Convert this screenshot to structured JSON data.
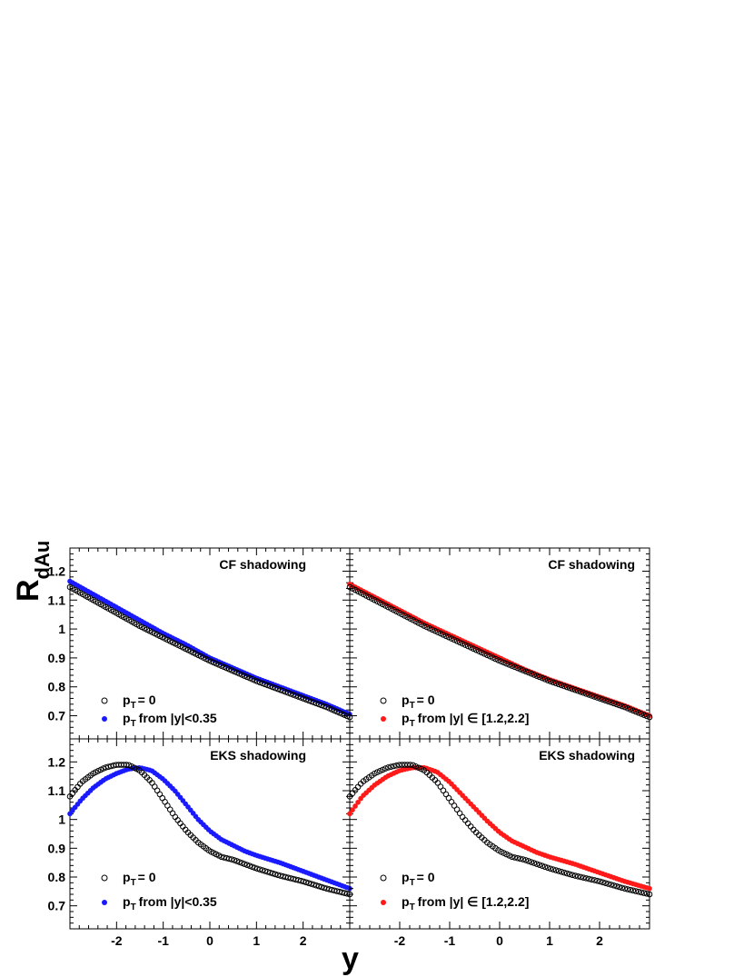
{
  "chart_data": [
    {
      "type": "scatter",
      "panel": "top-left",
      "title": "CF shadowing",
      "xlabel": "y",
      "ylabel": "R_dAu",
      "xlim": [
        -3,
        3
      ],
      "ylim": [
        0.62,
        1.28
      ],
      "xticks": [
        "-2",
        "-1",
        "0",
        "1",
        "2"
      ],
      "yticks": [
        "0.7",
        "0.8",
        "0.9",
        "1",
        "1.1",
        "1.2"
      ],
      "grid": false,
      "legend_position": "bottom-left",
      "series": [
        {
          "name": "p_T = 0",
          "marker": "open-circle",
          "color": "#000000",
          "x": [
            -3,
            -2.5,
            -2,
            -1.5,
            -1,
            -0.5,
            0,
            0.5,
            1,
            1.5,
            2,
            2.5,
            3
          ],
          "y": [
            1.145,
            1.1,
            1.055,
            1.01,
            0.97,
            0.93,
            0.89,
            0.855,
            0.82,
            0.79,
            0.76,
            0.73,
            0.695
          ]
        },
        {
          "name": "p_T from |y|<0.35",
          "marker": "filled-circle",
          "color": "#1a1aff",
          "x": [
            -3,
            -2.5,
            -2,
            -1.5,
            -1,
            -0.5,
            0,
            0.5,
            1,
            1.5,
            2,
            2.5,
            3
          ],
          "y": [
            1.165,
            1.12,
            1.075,
            1.03,
            0.985,
            0.945,
            0.9,
            0.865,
            0.83,
            0.8,
            0.77,
            0.74,
            0.705
          ]
        }
      ]
    },
    {
      "type": "scatter",
      "panel": "top-right",
      "title": "CF shadowing",
      "xlabel": "y",
      "xlim": [
        -3,
        3
      ],
      "ylim": [
        0.62,
        1.28
      ],
      "xticks": [
        "-2",
        "-1",
        "0",
        "1",
        "2"
      ],
      "grid": false,
      "legend_position": "bottom-left",
      "series": [
        {
          "name": "p_T = 0",
          "marker": "open-circle",
          "color": "#000000",
          "x": [
            -3,
            -2.5,
            -2,
            -1.5,
            -1,
            -0.5,
            0,
            0.5,
            1,
            1.5,
            2,
            2.5,
            3
          ],
          "y": [
            1.145,
            1.1,
            1.055,
            1.01,
            0.97,
            0.93,
            0.89,
            0.855,
            0.82,
            0.79,
            0.76,
            0.73,
            0.695
          ]
        },
        {
          "name": "p_T from |y| ∈ [1.2,2.2]",
          "marker": "filled-circle",
          "color": "#ff1a1a",
          "x": [
            -3,
            -2.5,
            -2,
            -1.5,
            -1,
            -0.5,
            0,
            0.5,
            1,
            1.5,
            2,
            2.5,
            3
          ],
          "y": [
            1.155,
            1.11,
            1.065,
            1.02,
            0.98,
            0.94,
            0.9,
            0.86,
            0.825,
            0.795,
            0.765,
            0.735,
            0.7
          ]
        }
      ]
    },
    {
      "type": "scatter",
      "panel": "bottom-left",
      "title": "EKS shadowing",
      "xlabel": "y",
      "ylabel": "R_dAu",
      "xlim": [
        -3,
        3
      ],
      "ylim": [
        0.62,
        1.28
      ],
      "xticks": [
        "-2",
        "-1",
        "0",
        "1",
        "2"
      ],
      "yticks": [
        "0.7",
        "0.8",
        "0.9",
        "1",
        "1.1",
        "1.2"
      ],
      "grid": false,
      "legend_position": "bottom-left",
      "series": [
        {
          "name": "p_T = 0",
          "marker": "open-circle",
          "color": "#000000",
          "x": [
            -3,
            -2.75,
            -2.5,
            -2.25,
            -2,
            -1.75,
            -1.5,
            -1.25,
            -1,
            -0.75,
            -0.5,
            -0.25,
            0,
            0.25,
            0.5,
            0.75,
            1,
            1.5,
            2,
            2.5,
            3
          ],
          "y": [
            1.08,
            1.13,
            1.16,
            1.18,
            1.19,
            1.19,
            1.17,
            1.13,
            1.07,
            1.01,
            0.96,
            0.92,
            0.89,
            0.87,
            0.86,
            0.845,
            0.83,
            0.805,
            0.785,
            0.76,
            0.74
          ]
        },
        {
          "name": "p_T from |y|<0.35",
          "marker": "filled-circle",
          "color": "#1a1aff",
          "x": [
            -3,
            -2.75,
            -2.5,
            -2.25,
            -2,
            -1.75,
            -1.5,
            -1.25,
            -1,
            -0.75,
            -0.5,
            -0.25,
            0,
            0.25,
            0.5,
            0.75,
            1,
            1.5,
            2,
            2.5,
            3
          ],
          "y": [
            1.02,
            1.07,
            1.11,
            1.14,
            1.16,
            1.175,
            1.18,
            1.17,
            1.14,
            1.1,
            1.05,
            1.0,
            0.96,
            0.93,
            0.91,
            0.89,
            0.875,
            0.85,
            0.82,
            0.79,
            0.76
          ]
        }
      ]
    },
    {
      "type": "scatter",
      "panel": "bottom-right",
      "title": "EKS shadowing",
      "xlabel": "y",
      "xlim": [
        -3,
        3
      ],
      "ylim": [
        0.62,
        1.28
      ],
      "xticks": [
        "-2",
        "-1",
        "0",
        "1",
        "2"
      ],
      "grid": false,
      "legend_position": "bottom-left",
      "series": [
        {
          "name": "p_T = 0",
          "marker": "open-circle",
          "color": "#000000",
          "x": [
            -3,
            -2.75,
            -2.5,
            -2.25,
            -2,
            -1.75,
            -1.5,
            -1.25,
            -1,
            -0.75,
            -0.5,
            -0.25,
            0,
            0.25,
            0.5,
            0.75,
            1,
            1.5,
            2,
            2.5,
            3
          ],
          "y": [
            1.08,
            1.13,
            1.16,
            1.18,
            1.19,
            1.19,
            1.17,
            1.13,
            1.07,
            1.01,
            0.96,
            0.92,
            0.89,
            0.87,
            0.86,
            0.845,
            0.83,
            0.805,
            0.785,
            0.76,
            0.74
          ]
        },
        {
          "name": "p_T from |y| ∈ [1.2,2.2]",
          "marker": "filled-circle",
          "color": "#ff1a1a",
          "x": [
            -3,
            -2.75,
            -2.5,
            -2.25,
            -2,
            -1.75,
            -1.5,
            -1.25,
            -1,
            -0.75,
            -0.5,
            -0.25,
            0,
            0.25,
            0.5,
            0.75,
            1,
            1.5,
            2,
            2.5,
            3
          ],
          "y": [
            1.02,
            1.08,
            1.12,
            1.15,
            1.17,
            1.18,
            1.18,
            1.165,
            1.13,
            1.085,
            1.04,
            0.995,
            0.955,
            0.925,
            0.905,
            0.885,
            0.87,
            0.845,
            0.815,
            0.785,
            0.76
          ]
        }
      ]
    }
  ],
  "axis_titles": {
    "y_main": "R",
    "y_sub": "dAu",
    "x_main": "y"
  },
  "legend_labels": {
    "open_main": "p",
    "open_sub": "T",
    "open_rest": "= 0",
    "filled_main": "p",
    "filled_sub": "T",
    "blue_rest": "from |y|<0.35",
    "red_rest": "from |y| ∈ [1.2,2.2]"
  }
}
